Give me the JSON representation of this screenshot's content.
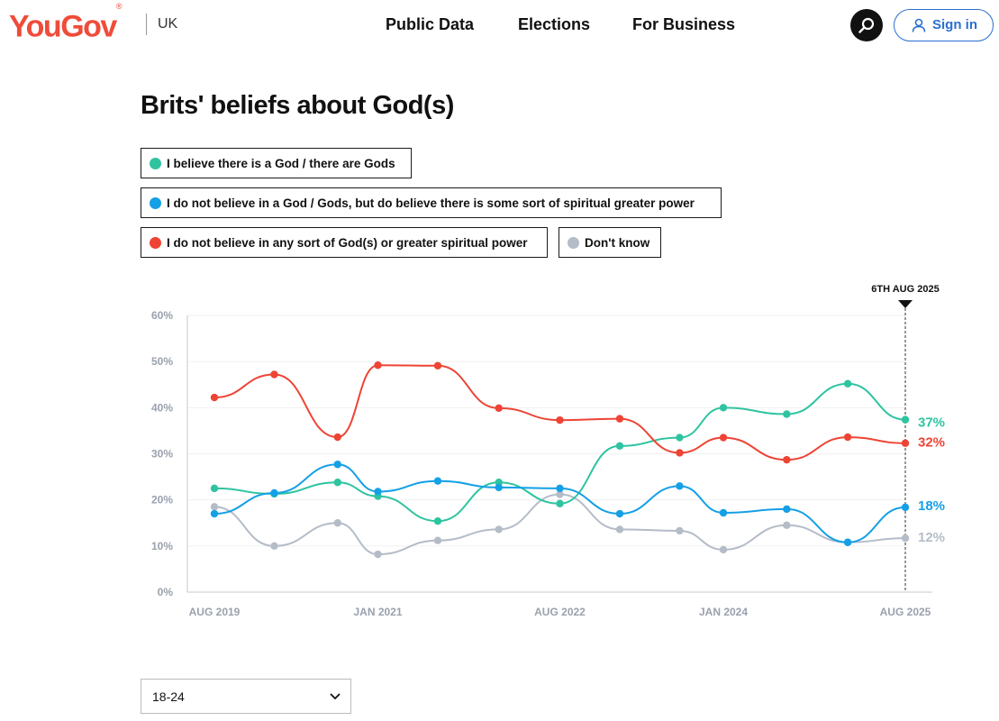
{
  "header": {
    "logo": "YouGov",
    "logo_mark": "®",
    "country": "UK",
    "nav": [
      "Public Data",
      "Elections",
      "For Business"
    ],
    "search_icon": "search-icon",
    "signin_label": "Sign in",
    "signin_icon": "user-icon"
  },
  "page": {
    "title": "Brits' beliefs about God(s)"
  },
  "legend": [
    {
      "label": "I believe there is a God / there are Gods",
      "color": "#2ec4a0"
    },
    {
      "label": "I do not believe in a God / Gods, but do believe there is some sort of spiritual greater power",
      "color": "#14a0e6"
    },
    {
      "label": "I do not believe in any sort of God(s) or greater spiritual power",
      "color": "#ee4435"
    },
    {
      "label": "Don't know",
      "color": "#b4bcc8"
    }
  ],
  "filter": {
    "selected": "18-24"
  },
  "chart_data": {
    "type": "line",
    "title": "Brits' beliefs about God(s)",
    "y_ticks": [
      "0%",
      "10%",
      "20%",
      "30%",
      "40%",
      "50%",
      "60%"
    ],
    "ylim": [
      0,
      60
    ],
    "x_range": [
      2019.58,
      2025.58
    ],
    "x_ticks": [
      {
        "x": 2019.58,
        "label": "AUG 2019"
      },
      {
        "x": 2021.0,
        "label": "JAN 2021"
      },
      {
        "x": 2022.58,
        "label": "AUG 2022"
      },
      {
        "x": 2024.0,
        "label": "JAN 2024"
      },
      {
        "x": 2025.58,
        "label": "AUG 2025"
      }
    ],
    "x": [
      2019.58,
      2020.1,
      2020.65,
      2021.0,
      2021.52,
      2022.05,
      2022.58,
      2023.1,
      2023.62,
      2024.0,
      2024.55,
      2025.08,
      2025.58
    ],
    "marker": {
      "x": 2025.58,
      "label": "6TH AUG 2025"
    },
    "series": [
      {
        "name": "I believe there is a God / there are Gods",
        "color": "#2ec4a0",
        "end_label": "37%",
        "values": [
          22.5,
          21.3,
          23.8,
          20.8,
          15.4,
          23.8,
          19.2,
          31.7,
          33.5,
          40,
          38.6,
          45.2,
          37.4
        ]
      },
      {
        "name": "I do not believe in a God / Gods, but do believe there is some sort of spiritual greater power",
        "color": "#14a0e6",
        "end_label": "18%",
        "values": [
          17,
          21.5,
          27.7,
          21.8,
          24.1,
          22.7,
          22.5,
          17,
          23,
          17.2,
          18,
          10.8,
          18.4
        ]
      },
      {
        "name": "I do not believe in any sort of God(s) or greater spiritual power",
        "color": "#ee4435",
        "end_label": "32%",
        "values": [
          42.2,
          47.2,
          33.6,
          49.2,
          49.1,
          39.9,
          37.3,
          37.6,
          30.2,
          33.5,
          28.7,
          33.6,
          32.3
        ]
      },
      {
        "name": "Don't know",
        "color": "#b4bcc8",
        "end_label": "12%",
        "values": [
          18.5,
          10,
          15,
          8.2,
          11.2,
          13.6,
          21.2,
          13.6,
          13.3,
          9.2,
          14.5,
          10.8,
          11.7
        ]
      }
    ]
  }
}
